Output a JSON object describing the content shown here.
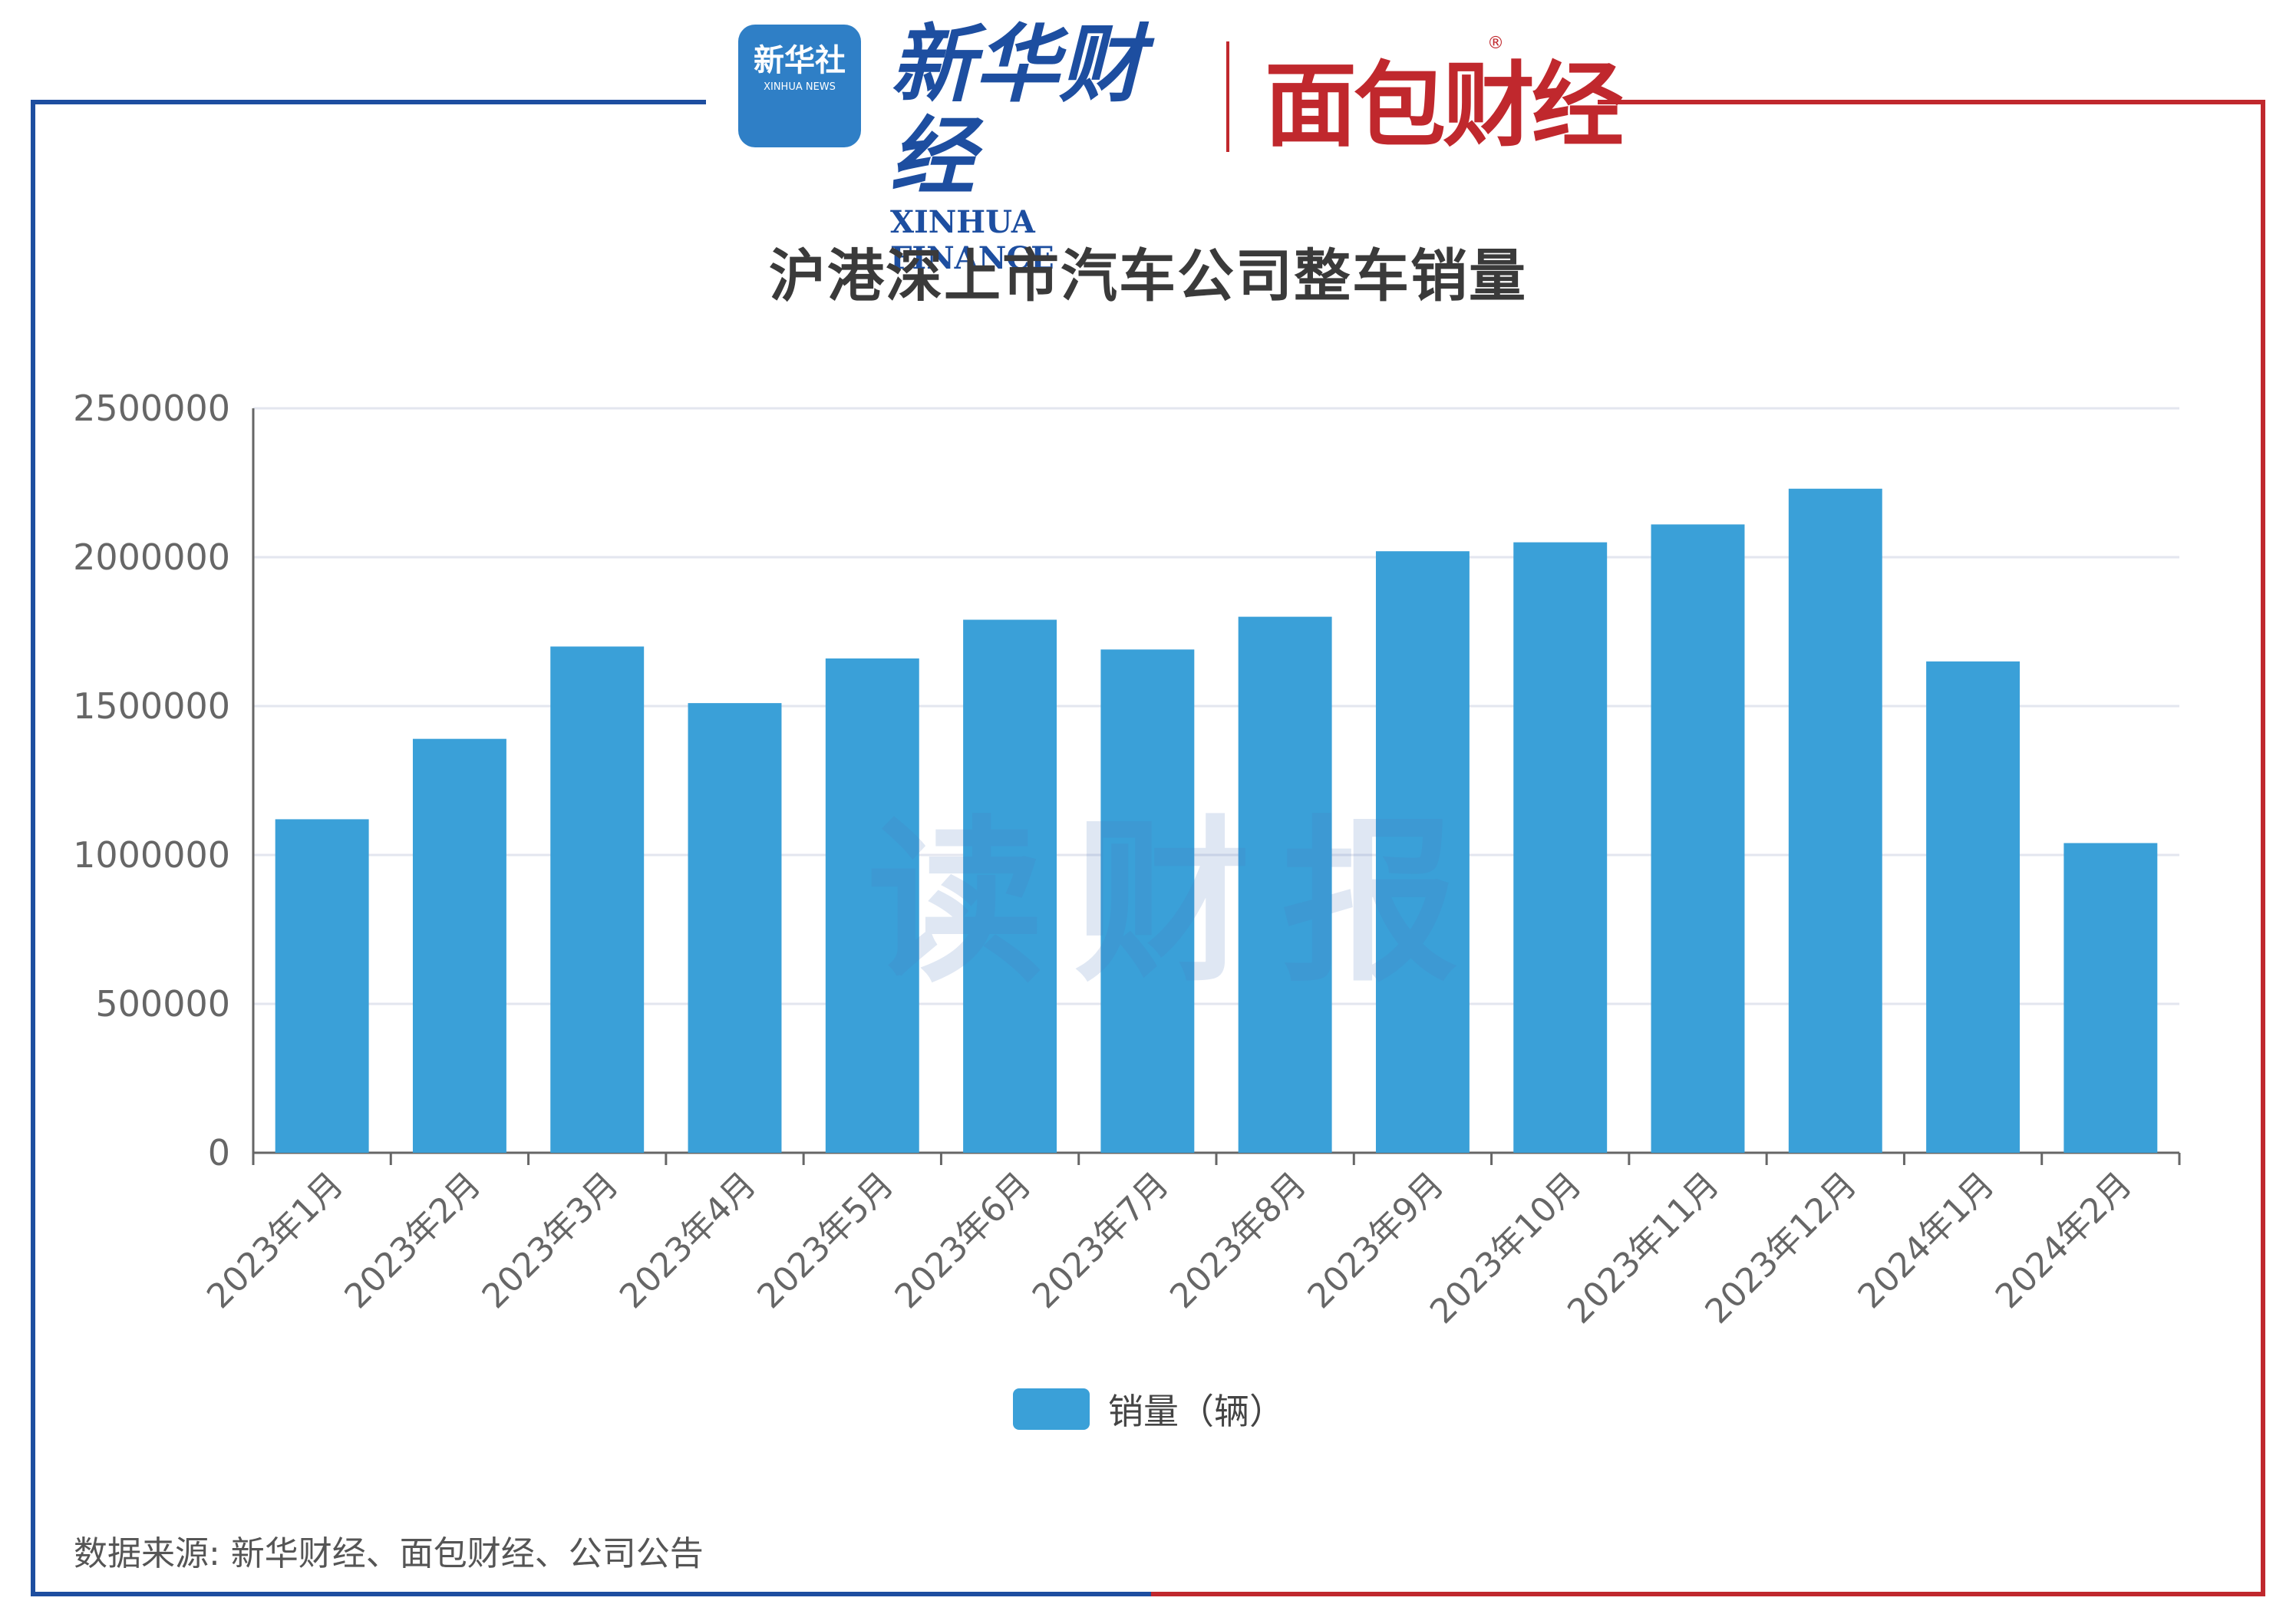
{
  "header": {
    "xinhua_news_cn": "新华社",
    "xinhua_news_en": "XINHUA NEWS",
    "xinhua_finance_cn": "新华财经",
    "xinhua_finance_en": "XINHUA FINANCE",
    "mianbao_cn": "面包财经",
    "registered_mark": "®"
  },
  "watermark": "读财报",
  "footer": {
    "source": "数据来源: 新华财经、面包财经、公司公告"
  },
  "colors": {
    "bar": "#3aa0d8",
    "frame_left": "#1d4ea0",
    "frame_right": "#c0282d",
    "grid": "#e3e6ef",
    "axis": "#666666"
  },
  "chart_data": {
    "type": "bar",
    "title": "沪港深上市汽车公司整车销量",
    "categories": [
      "2023年1月",
      "2023年2月",
      "2023年3月",
      "2023年4月",
      "2023年5月",
      "2023年6月",
      "2023年7月",
      "2023年8月",
      "2023年9月",
      "2023年10月",
      "2023年11月",
      "2023年12月",
      "2024年1月",
      "2024年2月"
    ],
    "series": [
      {
        "name": "销量（辆）",
        "values": [
          1120000,
          1390000,
          1700000,
          1510000,
          1660000,
          1790000,
          1690000,
          1800000,
          2020000,
          2050000,
          2110000,
          2230000,
          1650000,
          1040000
        ]
      }
    ],
    "ylim": [
      0,
      2500000
    ],
    "yticks": [
      "0",
      "500000",
      "1000000",
      "1500000",
      "2000000",
      "2500000"
    ],
    "grid": true,
    "legend_position": "bottom-center"
  }
}
